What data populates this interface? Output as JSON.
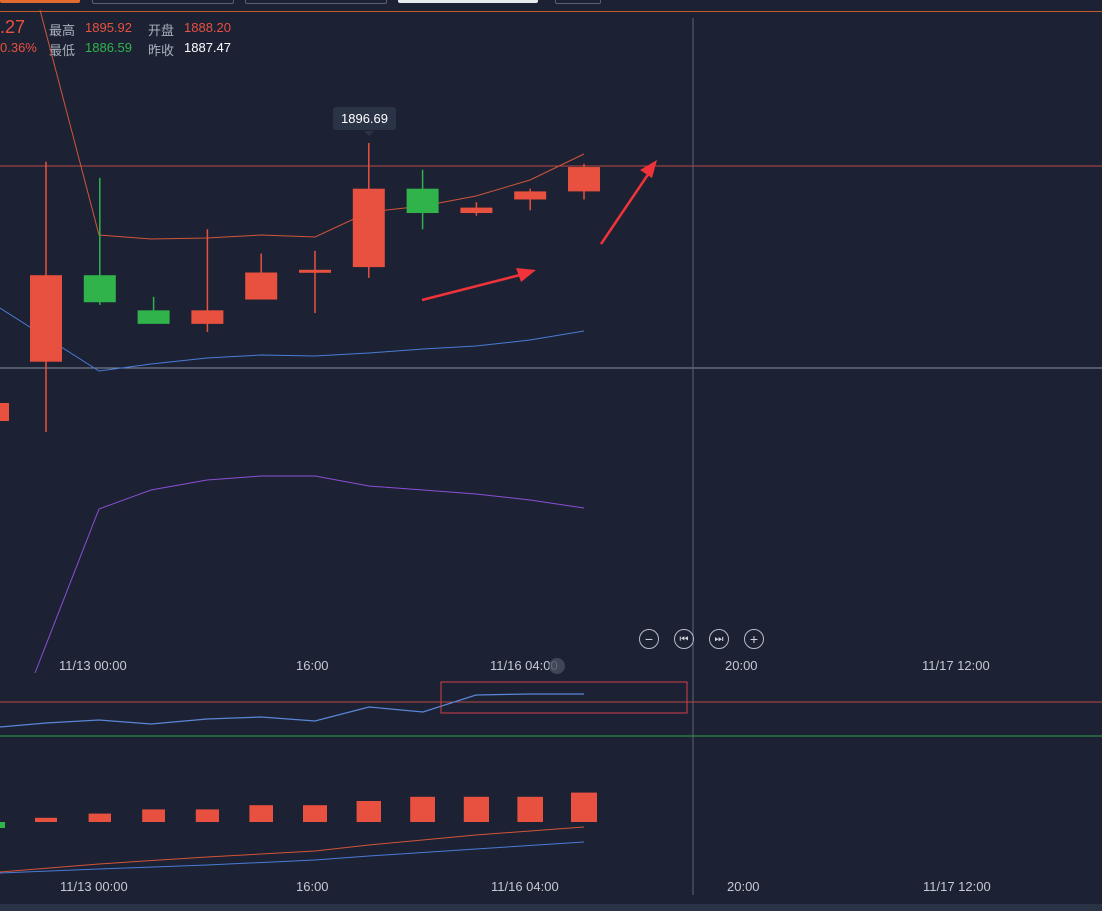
{
  "header": {
    "last_price_fragment": ".27",
    "change_pct_fragment": "0.36%",
    "high_label": "最高",
    "high_value": "1895.92",
    "open_label": "开盘",
    "open_value": "1888.20",
    "low_label": "最低",
    "low_value": "1886.59",
    "prev_close_label": "昨收",
    "prev_close_value": "1887.47"
  },
  "tooltip": {
    "value": "1896.69"
  },
  "time_axis": {
    "main": [
      "11/13 00:00",
      "16:00",
      "11/16 04:00",
      "20:00",
      "11/17 12:00"
    ],
    "volume": [
      "11/13 00:00",
      "16:00",
      "11/16 04:00",
      "20:00",
      "11/17 12:00"
    ]
  },
  "zoom_controls": [
    {
      "name": "zoom-out-button",
      "icon": "minus-icon",
      "glyph": "−"
    },
    {
      "name": "jump-to-start-button",
      "icon": "skip-back-icon",
      "glyph": "⏮"
    },
    {
      "name": "jump-to-end-button",
      "icon": "skip-forward-icon",
      "glyph": "⏭"
    },
    {
      "name": "zoom-in-button",
      "icon": "plus-icon",
      "glyph": "+"
    }
  ],
  "colors": {
    "up": "#e8503f",
    "down": "#2fb34a",
    "background": "#1c2233",
    "ma_blue": "#4a7bd6",
    "ma_purple": "#8a4fd6",
    "ma_red": "#d2543a",
    "annotation_red": "#f0333a"
  },
  "chart_data": {
    "type": "candlestick",
    "candles": [
      {
        "open": 1888.6,
        "high": 1896.0,
        "low": 1886.0,
        "close": 1891.8,
        "dir": "up"
      },
      {
        "open": 1891.8,
        "high": 1895.4,
        "low": 1890.7,
        "close": 1890.8,
        "dir": "down"
      },
      {
        "open": 1890.5,
        "high": 1891.0,
        "low": 1890.1,
        "close": 1890.0,
        "dir": "down"
      },
      {
        "open": 1890.0,
        "high": 1893.5,
        "low": 1889.7,
        "close": 1890.5,
        "dir": "up"
      },
      {
        "open": 1890.9,
        "high": 1892.6,
        "low": 1890.9,
        "close": 1891.9,
        "dir": "up"
      },
      {
        "open": 1891.9,
        "high": 1892.7,
        "low": 1890.4,
        "close": 1892.0,
        "dir": "up"
      },
      {
        "open": 1892.1,
        "high": 1896.69,
        "low": 1891.7,
        "close": 1895.0,
        "dir": "up"
      },
      {
        "open": 1895.0,
        "high": 1895.7,
        "low": 1893.5,
        "close": 1894.1,
        "dir": "down"
      },
      {
        "open": 1894.1,
        "high": 1894.5,
        "low": 1894.0,
        "close": 1894.3,
        "dir": "up"
      },
      {
        "open": 1894.6,
        "high": 1895.0,
        "low": 1894.2,
        "close": 1894.9,
        "dir": "up"
      },
      {
        "open": 1894.9,
        "high": 1895.92,
        "low": 1894.6,
        "close": 1895.8,
        "dir": "up"
      }
    ],
    "volume": [
      1,
      2,
      3,
      3,
      4,
      4,
      5,
      6,
      6,
      6,
      7
    ]
  }
}
